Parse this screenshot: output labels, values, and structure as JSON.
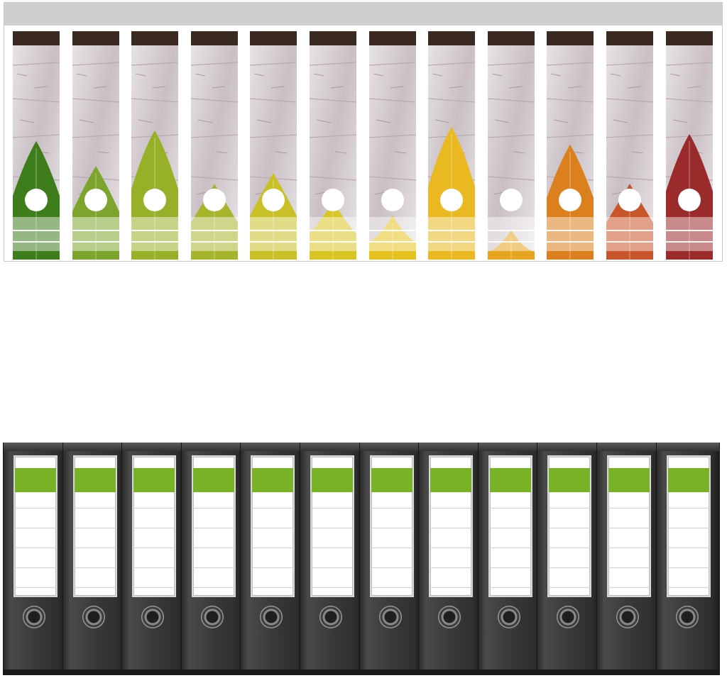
{
  "colors": {
    "sheet_bar": "#cfcfcf",
    "wood_light": "#e9e5e8",
    "wood_mid": "#c9bfc4",
    "wood_dark_edge": "#3a2a22",
    "binder_body": "#333333",
    "binder_label_accent": "#7ab227",
    "leaf_green_dark": "#3e7d1c",
    "leaf_green": "#7da52d",
    "leaf_yellow_green": "#b9c12f",
    "leaf_yellow": "#e7c21f",
    "leaf_amber": "#e9a11c",
    "leaf_orange": "#d8731c",
    "leaf_red": "#9b2a2b"
  },
  "label_sheet": {
    "label_count": 12,
    "labels": [
      {
        "leaf_color": "#3e7d1c"
      },
      {
        "leaf_color": "#7da52d"
      },
      {
        "leaf_color": "#96b128"
      },
      {
        "leaf_color": "#a6b52c"
      },
      {
        "leaf_color": "#c9c027"
      },
      {
        "leaf_color": "#d9c523"
      },
      {
        "leaf_color": "#e4c21f"
      },
      {
        "leaf_color": "#eab820"
      },
      {
        "leaf_color": "#e6a420"
      },
      {
        "leaf_color": "#dc7f1d"
      },
      {
        "leaf_color": "#c9552a"
      },
      {
        "leaf_color": "#9b2a2b"
      }
    ]
  },
  "binder_row": {
    "binder_count": 12,
    "icon": "ring-binder-icon"
  }
}
